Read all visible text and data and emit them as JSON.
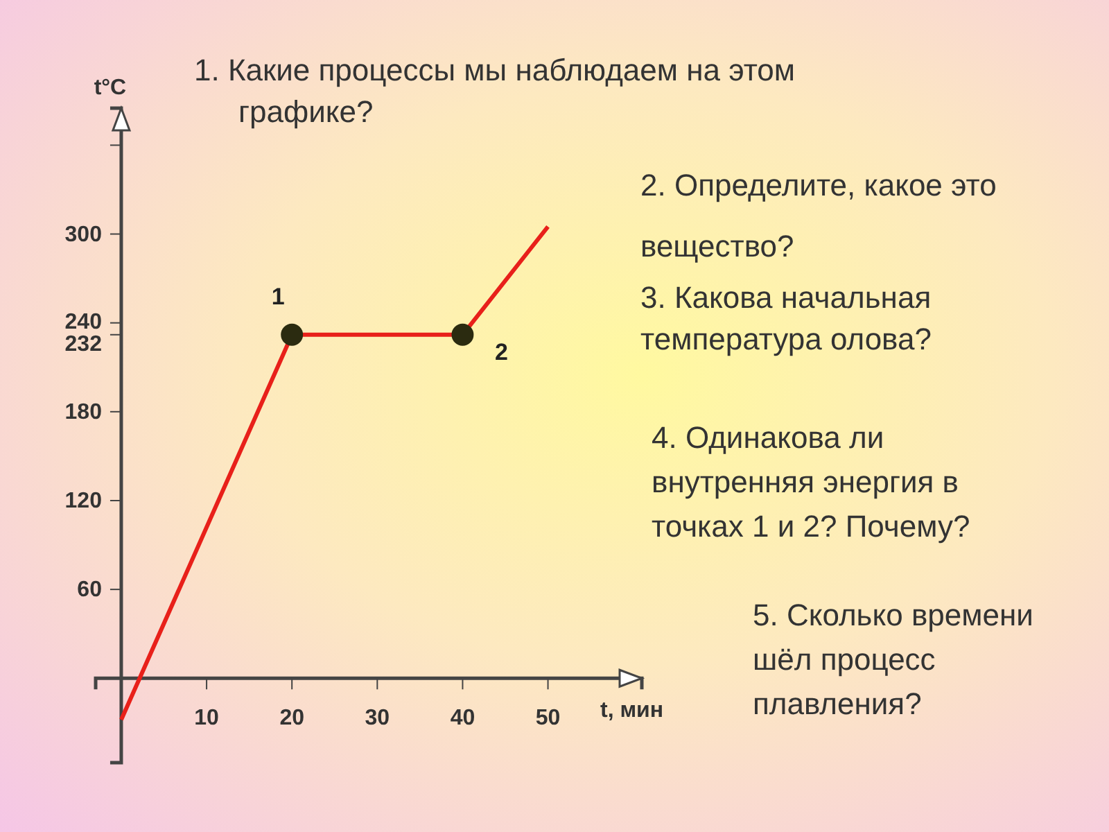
{
  "chart_data": {
    "type": "line",
    "title": "1. Какие процессы мы наблюдаем на этом графике?",
    "xlabel": "t, мин",
    "ylabel": "t°C",
    "annotations": [
      "2. Определите, какое это вещество?",
      "3. Какова начальная температура олова?",
      "4. Одинакова ли внутренняя энергия в точках 1 и 2? Почему?",
      "5. Сколько времени шёл процесс плавления?",
      {
        "text": "1",
        "x": 20,
        "y": 232
      },
      {
        "text": "2",
        "x": 40,
        "y": 232
      }
    ],
    "xlim": [
      -3,
      61
    ],
    "ylim": [
      -57,
      385
    ],
    "xticks": [
      10,
      20,
      30,
      40,
      50
    ],
    "yticks": [
      60,
      120,
      180,
      {
        "value": 232,
        "label": "232"
      },
      {
        "value": 240,
        "label": "240"
      },
      300,
      {
        "value": 360,
        "label": null
      }
    ],
    "grid": false,
    "series": [
      {
        "color": "#e8201a",
        "x": [
          0,
          20,
          40,
          50
        ],
        "values": [
          -28,
          232,
          232,
          305
        ],
        "marker": "none",
        "line_style": "solid"
      },
      {
        "type": "scatter",
        "color": "#2b2b10",
        "x": [
          20,
          40
        ],
        "values": [
          232,
          232
        ],
        "marker": "circle"
      }
    ]
  }
}
